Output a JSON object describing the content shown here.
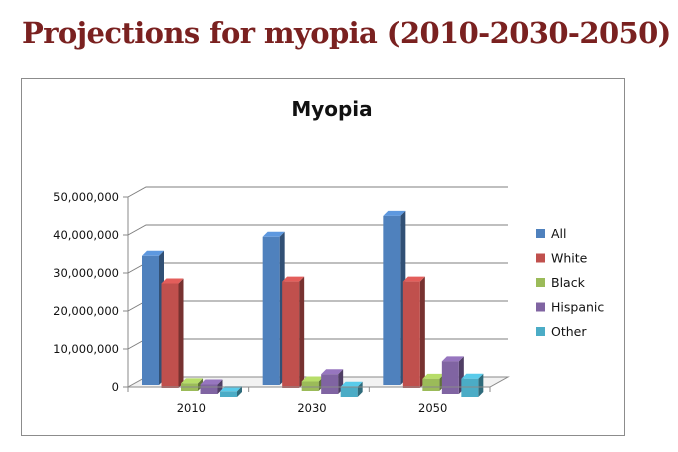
{
  "page": {
    "title": "Projections for myopia (2010-2030-2050)"
  },
  "chart_data": {
    "type": "bar",
    "title": "Myopia",
    "xlabel": "",
    "ylabel": "",
    "categories": [
      "2010",
      "2030",
      "2050"
    ],
    "series": [
      {
        "name": "All",
        "color": "#4f81bd",
        "values": [
          34000000,
          39000000,
          44500000
        ]
      },
      {
        "name": "White",
        "color": "#c0504d",
        "values": [
          27500000,
          28000000,
          28000000
        ]
      },
      {
        "name": "Black",
        "color": "#9bbb59",
        "values": [
          2000000,
          2500000,
          3200000
        ]
      },
      {
        "name": "Hispanic",
        "color": "#8064a2",
        "values": [
          2500000,
          5200000,
          8600000
        ]
      },
      {
        "name": "Other",
        "color": "#4bacc6",
        "values": [
          1500000,
          2700000,
          4800000
        ]
      }
    ],
    "ylim": [
      0,
      50000000
    ],
    "yticks": [
      0,
      10000000,
      20000000,
      30000000,
      40000000,
      50000000
    ],
    "ytick_labels": [
      "0",
      "10,000,000",
      "20,000,000",
      "30,000,000",
      "40,000,000",
      "50,000,000"
    ],
    "grid": true,
    "three_d": true,
    "legend_position": "right"
  }
}
